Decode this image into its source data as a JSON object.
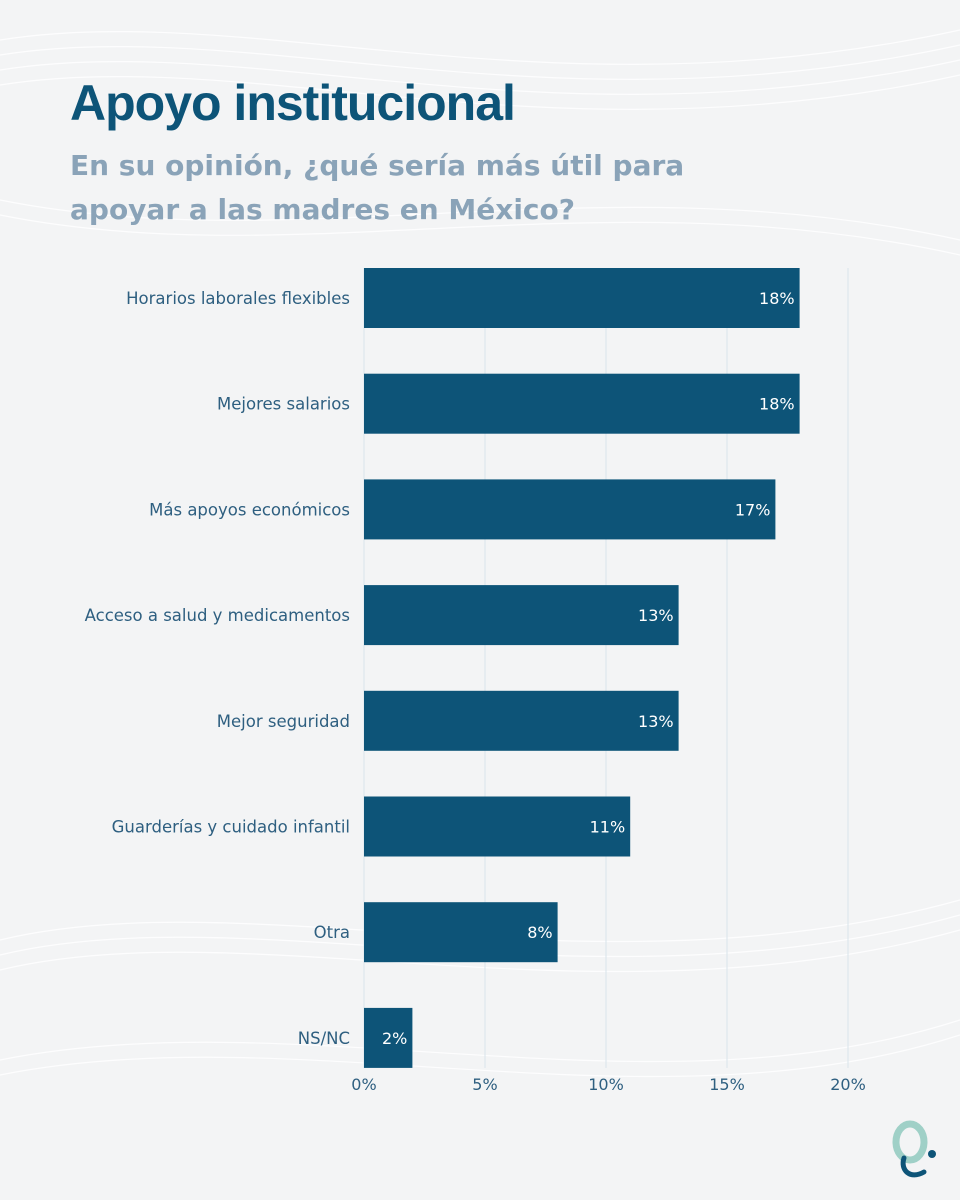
{
  "header": {
    "title": "Apoyo institucional",
    "subtitle": "En su opinión, ¿qué sería más útil para apoyar a las madres en México?"
  },
  "colors": {
    "bar": "#0d5478",
    "bar_label": "#ffffff",
    "category_label": "#2e5f80",
    "tick_label": "#2e5f80",
    "grid": "#d8e3ea",
    "logo_teal": "#9fd0c7",
    "logo_navy": "#0d5478"
  },
  "logo": {
    "icon": "q-brand-logo-icon"
  },
  "chart_data": {
    "type": "bar",
    "orientation": "horizontal",
    "categories": [
      "Horarios laborales flexibles",
      "Mejores salarios",
      "Más apoyos económicos",
      "Acceso a salud y medicamentos",
      "Mejor seguridad",
      "Guarderías y cuidado infantil",
      "Otra",
      "NS/NC"
    ],
    "values": [
      18,
      18,
      17,
      13,
      13,
      11,
      8,
      2
    ],
    "data_labels": [
      "18%",
      "18%",
      "17%",
      "13%",
      "13%",
      "11%",
      "8%",
      "2%"
    ],
    "xlim": [
      0,
      20
    ],
    "xticks": [
      0,
      5,
      10,
      15,
      20
    ],
    "xtick_labels": [
      "0%",
      "5%",
      "10%",
      "15%",
      "20%"
    ],
    "grid": true,
    "legend": "none"
  }
}
